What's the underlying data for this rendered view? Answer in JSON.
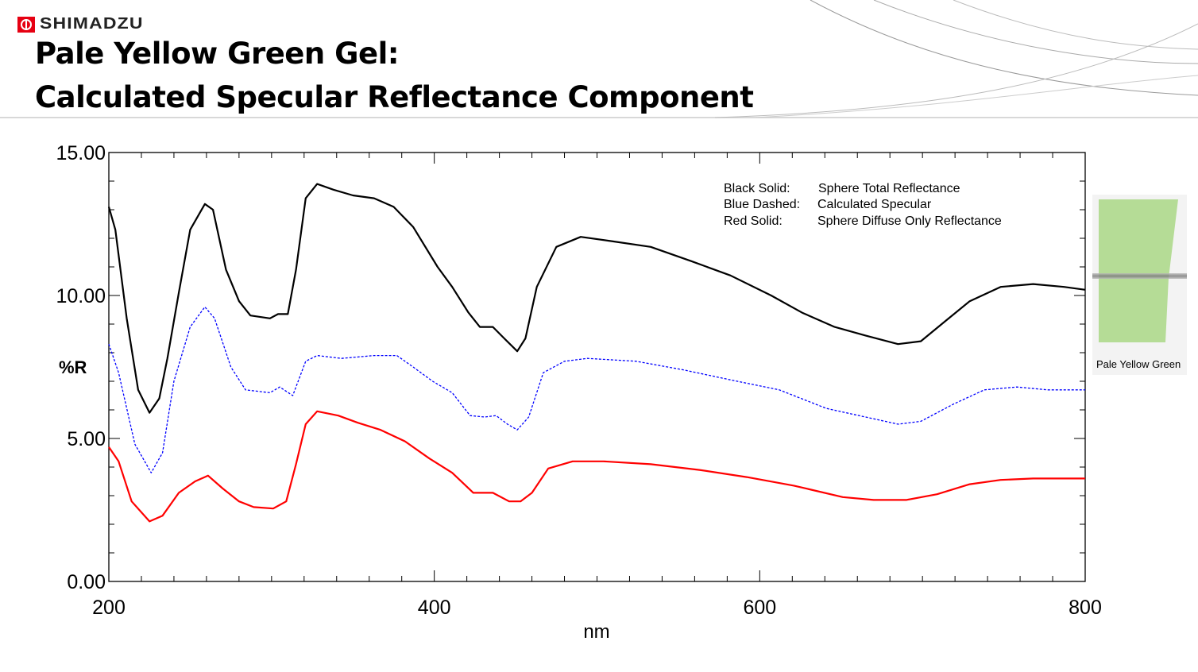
{
  "brand": {
    "name": "SHIMADZU",
    "color": "#e60012"
  },
  "title": {
    "line1": "Pale Yellow Green Gel:",
    "line2": "Calculated Specular Reflectance Component"
  },
  "photo": {
    "label": "Pale Yellow Green",
    "gel_color": "#b5dc96"
  },
  "legend": [
    {
      "key": "Black Solid:",
      "desc": "Sphere Total Reflectance"
    },
    {
      "key": "Blue Dashed:",
      "desc": "Calculated Specular"
    },
    {
      "key": "Red Solid:",
      "desc": "Sphere Diffuse Only Reflectance"
    }
  ],
  "chart_data": {
    "type": "line",
    "title": "",
    "xlabel": "nm",
    "ylabel": "%R",
    "xlim": [
      200,
      800
    ],
    "ylim": [
      0,
      15
    ],
    "xticks": [
      "200",
      "400",
      "600",
      "800"
    ],
    "yticks": [
      "0.00",
      "5.00",
      "10.00",
      "15.00"
    ],
    "grid": false,
    "legend_placement": "top-right",
    "series": [
      {
        "name": "Sphere Total Reflectance",
        "color": "#000000",
        "style": "solid",
        "x": [
          200,
          204,
          211,
          218,
          225,
          231,
          236,
          243,
          250,
          259,
          264,
          272,
          280,
          287,
          299,
          304,
          310,
          315,
          321,
          328,
          338,
          350,
          363,
          375,
          387,
          402,
          411,
          421,
          428,
          436,
          443,
          451,
          456,
          463,
          475,
          490,
          509,
          533,
          558,
          582,
          607,
          626,
          646,
          665,
          685,
          699,
          714,
          729,
          748,
          768,
          787,
          800
        ],
        "y": [
          13.1,
          12.3,
          9.2,
          6.7,
          5.9,
          6.4,
          7.8,
          10.1,
          12.3,
          13.2,
          13.0,
          10.9,
          9.8,
          9.3,
          9.2,
          9.35,
          9.35,
          10.9,
          13.4,
          13.9,
          13.7,
          13.5,
          13.4,
          13.1,
          12.4,
          11.0,
          10.3,
          9.4,
          8.9,
          8.9,
          8.5,
          8.05,
          8.5,
          10.3,
          11.7,
          12.05,
          11.9,
          11.7,
          11.2,
          10.7,
          10.0,
          9.4,
          8.9,
          8.6,
          8.3,
          8.4,
          9.1,
          9.8,
          10.3,
          10.4,
          10.3,
          10.2
        ]
      },
      {
        "name": "Calculated Specular",
        "color": "#0000ff",
        "style": "dashed",
        "x": [
          200,
          206,
          216,
          226,
          233,
          240,
          250,
          259,
          265,
          275,
          284,
          299,
          305,
          313,
          321,
          328,
          343,
          363,
          377,
          387,
          399,
          411,
          422,
          431,
          438,
          445,
          451,
          458,
          467,
          480,
          494,
          524,
          553,
          582,
          612,
          641,
          665,
          685,
          699,
          719,
          738,
          758,
          777,
          800
        ],
        "y": [
          8.3,
          7.3,
          4.8,
          3.8,
          4.5,
          7.0,
          8.9,
          9.6,
          9.2,
          7.5,
          6.7,
          6.6,
          6.8,
          6.5,
          7.7,
          7.9,
          7.8,
          7.9,
          7.9,
          7.5,
          7.0,
          6.6,
          5.8,
          5.75,
          5.8,
          5.5,
          5.3,
          5.75,
          7.3,
          7.7,
          7.8,
          7.7,
          7.4,
          7.05,
          6.7,
          6.05,
          5.75,
          5.5,
          5.6,
          6.2,
          6.7,
          6.8,
          6.7,
          6.7
        ]
      },
      {
        "name": "Sphere Diffuse Only Reflectance",
        "color": "#ff0000",
        "style": "solid",
        "x": [
          200,
          206,
          214,
          225,
          233,
          243,
          253,
          261,
          270,
          280,
          289,
          301,
          309,
          315,
          321,
          328,
          341,
          353,
          367,
          382,
          397,
          411,
          424,
          436,
          446,
          453,
          460,
          470,
          485,
          504,
          533,
          563,
          592,
          621,
          651,
          670,
          690,
          709,
          729,
          748,
          768,
          800
        ],
        "y": [
          4.7,
          4.2,
          2.8,
          2.1,
          2.3,
          3.1,
          3.5,
          3.7,
          3.25,
          2.8,
          2.6,
          2.55,
          2.8,
          4.1,
          5.5,
          5.95,
          5.8,
          5.55,
          5.3,
          4.9,
          4.3,
          3.8,
          3.1,
          3.1,
          2.8,
          2.8,
          3.1,
          3.95,
          4.2,
          4.2,
          4.1,
          3.9,
          3.65,
          3.35,
          2.95,
          2.85,
          2.85,
          3.05,
          3.4,
          3.55,
          3.6,
          3.6
        ]
      }
    ]
  }
}
